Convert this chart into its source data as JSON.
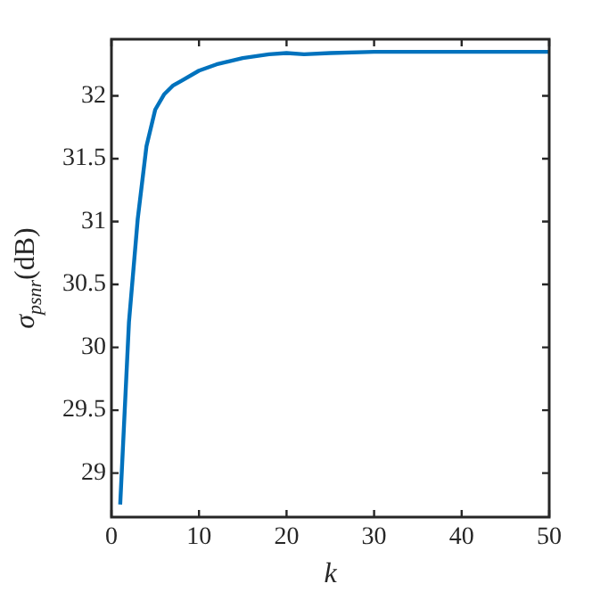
{
  "chart_data": {
    "type": "line",
    "xlabel": "k",
    "ylabel": "σ$_{psnr}$(dB)",
    "x": [
      1,
      2,
      3,
      4,
      5,
      6,
      7,
      8,
      10,
      12,
      15,
      18,
      20,
      22,
      25,
      30,
      40,
      50
    ],
    "series": [
      {
        "color": "#0072bd",
        "values": [
          28.75,
          30.2,
          31.02,
          31.6,
          31.89,
          32.01,
          32.08,
          32.12,
          32.2,
          32.25,
          32.3,
          32.33,
          32.34,
          32.33,
          32.34,
          32.35,
          32.35,
          32.35
        ]
      }
    ],
    "xlim": [
      0,
      50
    ],
    "xticks": [
      0,
      10,
      20,
      30,
      40,
      50
    ],
    "ylim": [
      28.65,
      32.45
    ],
    "yticks": [
      29,
      29.5,
      30,
      30.5,
      31,
      31.5,
      32
    ],
    "grid": false,
    "legend": false,
    "marker": "none",
    "line_style": "solid"
  }
}
